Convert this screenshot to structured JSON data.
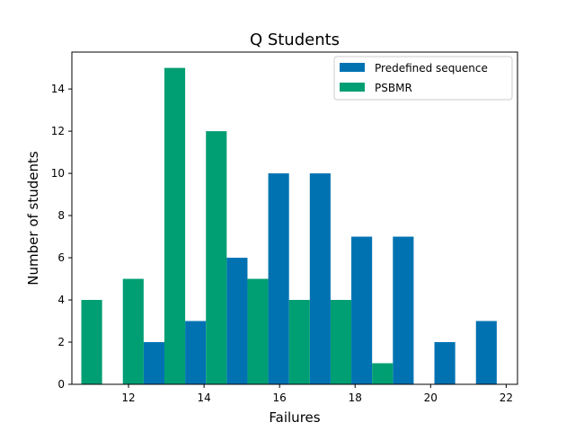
{
  "chart_data": {
    "type": "bar",
    "title": "Q Students",
    "xlabel": "Failures",
    "ylabel": "Number of students",
    "xlim": [
      10.5,
      22.3
    ],
    "ylim": [
      0,
      15.75
    ],
    "xticks": [
      12,
      14,
      16,
      18,
      20,
      22
    ],
    "yticks": [
      0,
      2,
      4,
      6,
      8,
      10,
      12,
      14
    ],
    "bin_width": 1.1,
    "legend_position": "top-right",
    "grid": false,
    "series": [
      {
        "name": "Predefined sequence",
        "color": "#0072B2",
        "x": [
          11.3,
          12.4,
          13.5,
          14.6,
          15.7,
          16.8,
          17.9,
          19.0,
          20.1,
          21.2
        ],
        "values": [
          0,
          2,
          3,
          6,
          10,
          10,
          7,
          7,
          2,
          3
        ]
      },
      {
        "name": "PSBMR",
        "color": "#009E73",
        "x": [
          11.3,
          12.4,
          13.5,
          14.6,
          15.7,
          16.8,
          17.9,
          19.0,
          20.1,
          21.2
        ],
        "values": [
          4,
          5,
          15,
          12,
          5,
          4,
          4,
          1,
          0,
          0
        ]
      }
    ]
  }
}
